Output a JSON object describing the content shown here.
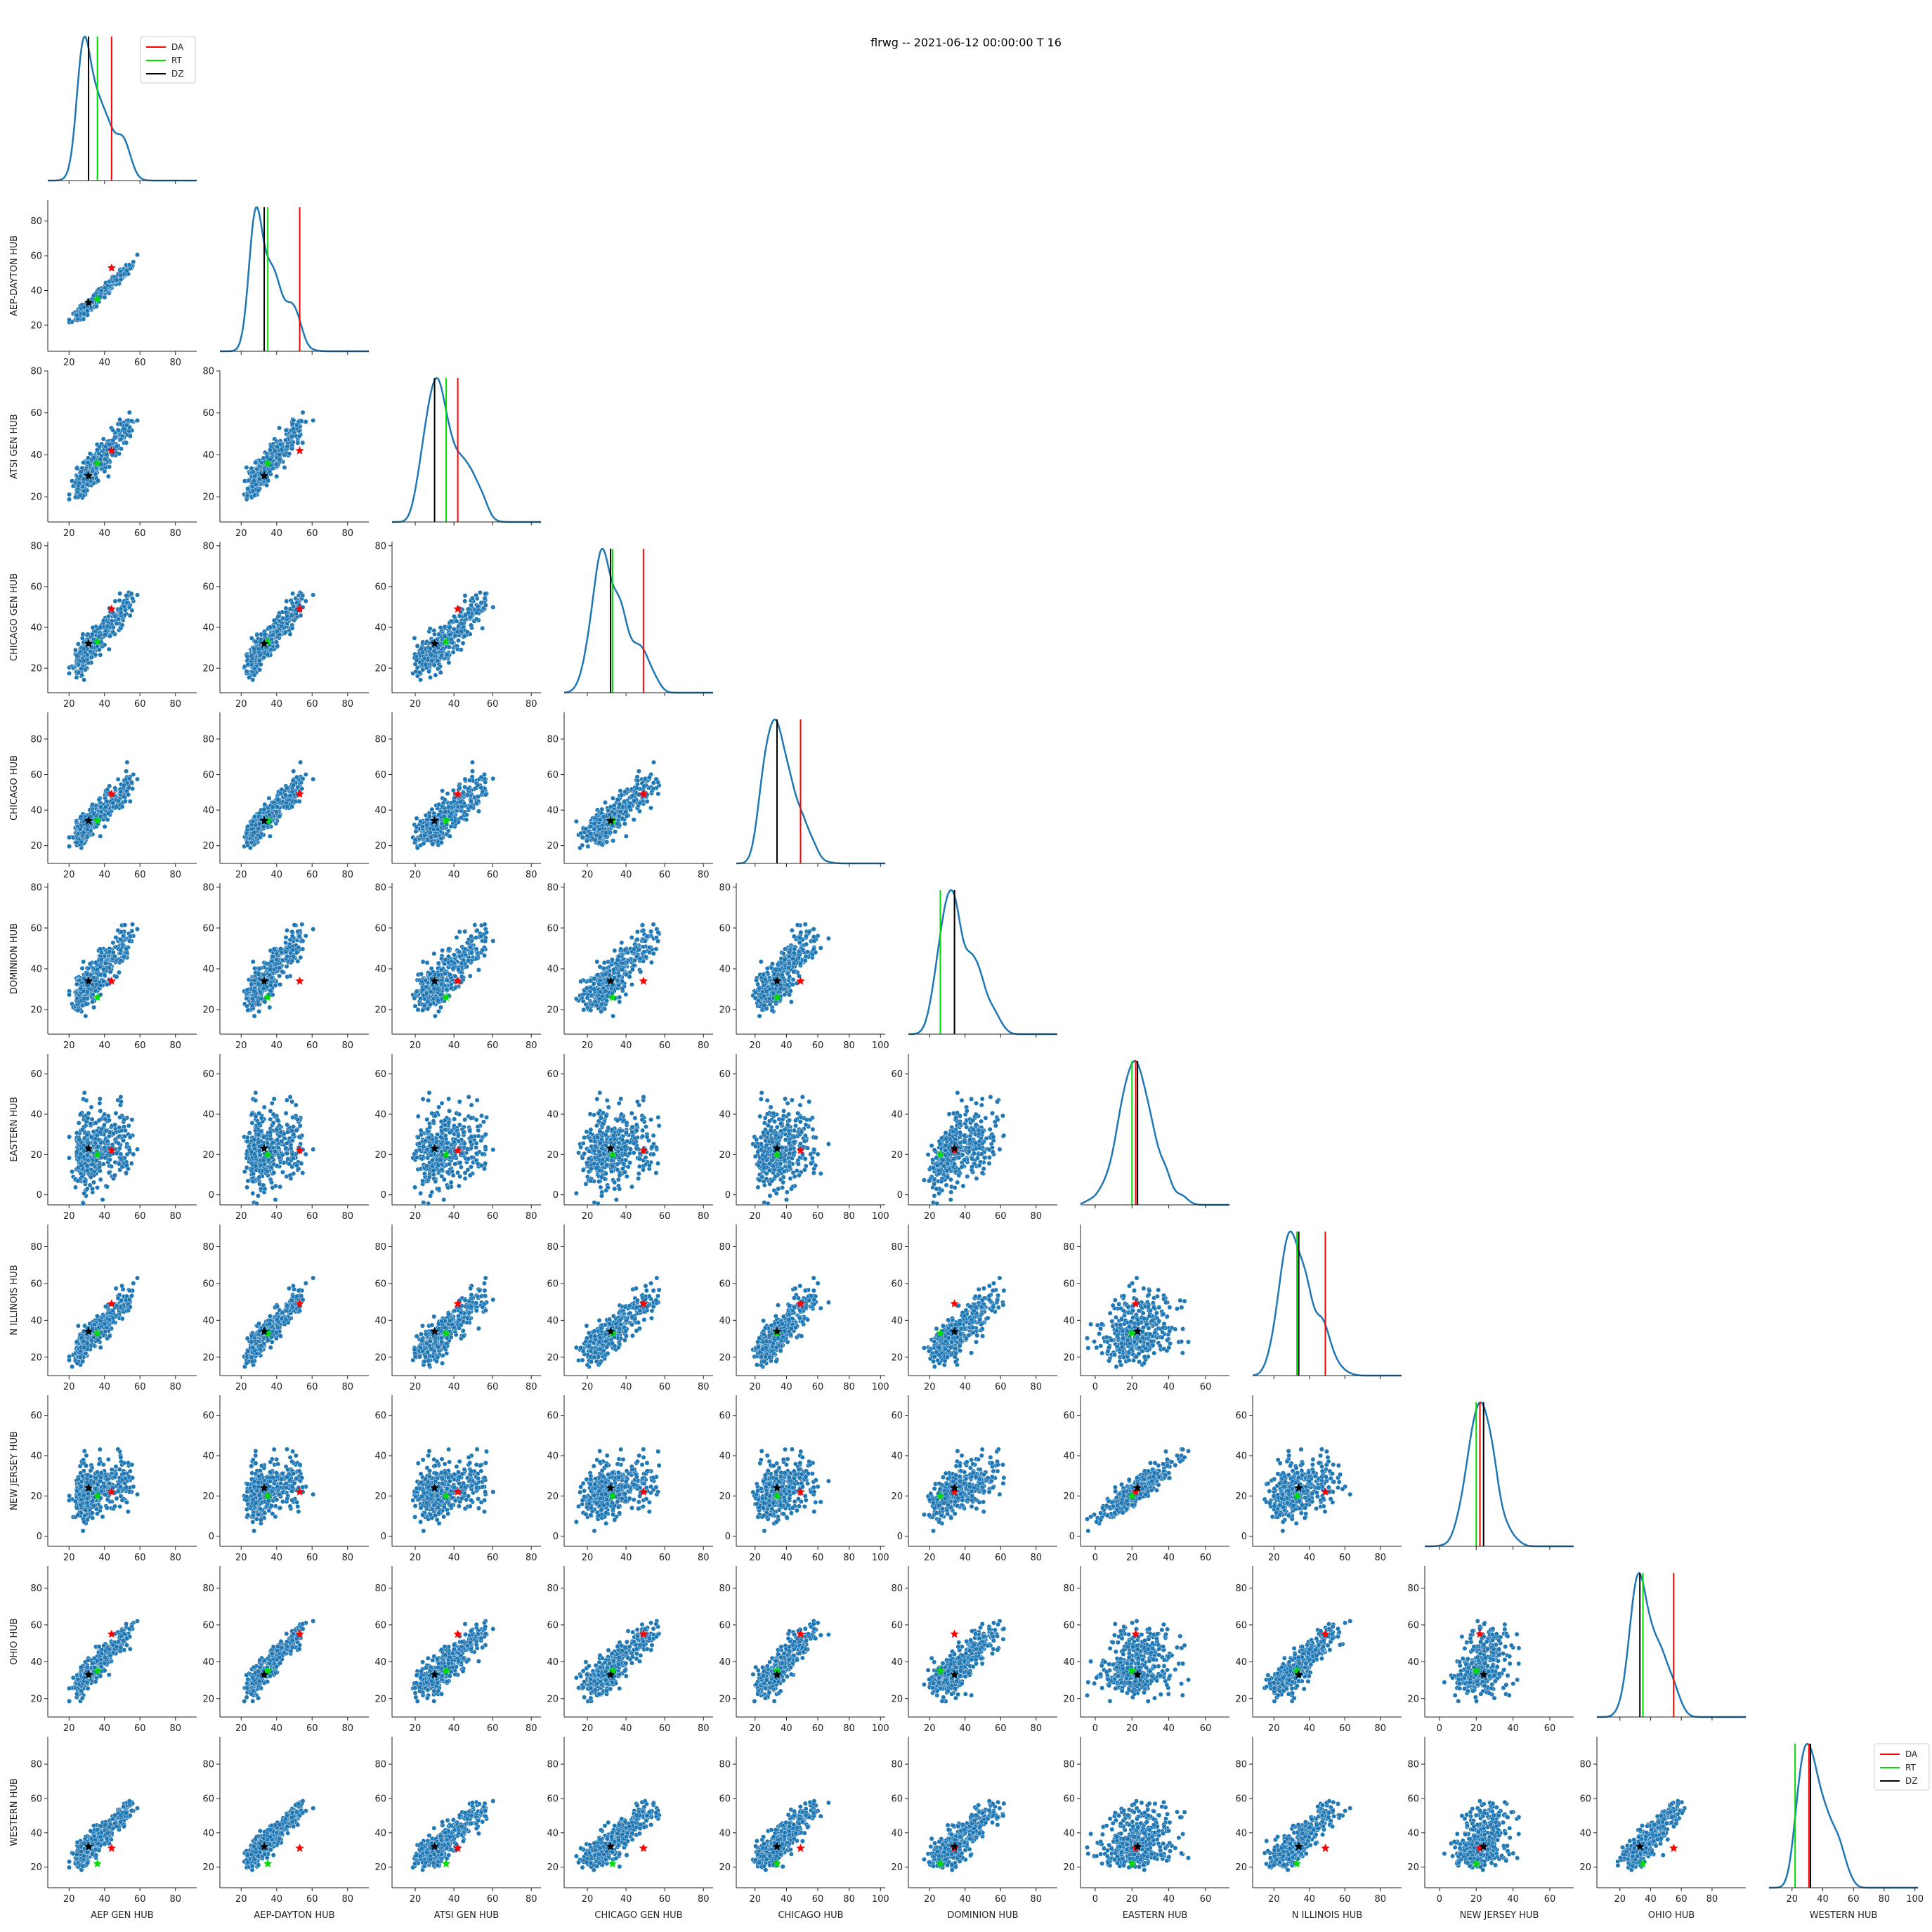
{
  "chart_data": {
    "type": "scatter",
    "kind": "pairplot-corner",
    "title": "flrwg -- 2021-06-12 00:00:00 T 16",
    "variables": [
      "AEP GEN HUB",
      "AEP-DAYTON HUB",
      "ATSI GEN HUB",
      "CHICAGO GEN HUB",
      "CHICAGO HUB",
      "DOMINION HUB",
      "EASTERN HUB",
      "N ILLINOIS HUB",
      "NEW JERSEY HUB",
      "OHIO HUB",
      "WESTERN HUB"
    ],
    "x_ranges": [
      [
        8,
        92
      ],
      [
        8,
        92
      ],
      [
        8,
        85
      ],
      [
        8,
        85
      ],
      [
        8,
        103
      ],
      [
        8,
        92
      ],
      [
        -8,
        73
      ],
      [
        8,
        92
      ],
      [
        -8,
        73
      ],
      [
        5,
        102
      ],
      [
        5,
        102
      ]
    ],
    "y_ranges": [
      null,
      [
        5,
        92
      ],
      [
        8,
        80
      ],
      [
        8,
        82
      ],
      [
        10,
        95
      ],
      [
        8,
        82
      ],
      [
        -5,
        70
      ],
      [
        10,
        92
      ],
      [
        -5,
        70
      ],
      [
        10,
        92
      ],
      [
        8,
        96
      ]
    ],
    "x_ticks": [
      [
        20,
        40,
        60,
        80
      ],
      [
        20,
        40,
        60,
        80
      ],
      [
        20,
        40,
        60,
        80
      ],
      [
        20,
        40,
        60,
        80
      ],
      [
        20,
        40,
        60,
        80,
        100
      ],
      [
        20,
        40,
        60,
        80
      ],
      [
        0,
        20,
        40,
        60
      ],
      [
        20,
        40,
        60,
        80
      ],
      [
        0,
        20,
        40,
        60
      ],
      [
        20,
        40,
        60,
        80
      ],
      [
        20,
        40,
        60,
        80,
        100
      ]
    ],
    "y_ticks": [
      null,
      [
        20,
        40,
        60,
        80
      ],
      [
        20,
        40,
        60,
        80
      ],
      [
        20,
        40,
        60,
        80
      ],
      [
        20,
        40,
        60,
        80
      ],
      [
        20,
        40,
        60,
        80
      ],
      [
        0,
        20,
        40,
        60
      ],
      [
        20,
        40,
        60,
        80
      ],
      [
        0,
        20,
        40,
        60
      ],
      [
        20,
        40,
        60,
        80
      ],
      [
        20,
        40,
        60,
        80
      ]
    ],
    "markers": {
      "DA": [
        44,
        53,
        42,
        49,
        49,
        34,
        22,
        49,
        22,
        55,
        31
      ],
      "RT": [
        36,
        35,
        36,
        33,
        34,
        26,
        20,
        33,
        20,
        35,
        22
      ],
      "DZ": [
        31,
        33,
        30,
        32,
        34,
        34,
        23,
        34,
        24,
        33,
        32
      ]
    },
    "legend": [
      {
        "label": "DA",
        "color": "#ff0000"
      },
      {
        "label": "RT",
        "color": "#00dd00"
      },
      {
        "label": "DZ",
        "color": "#000000"
      }
    ],
    "legend_placement": [
      "upper-right of first diagonal panel",
      "upper-right of last diagonal panel"
    ],
    "colors": {
      "points": "#1f77b4",
      "kde": "#1f77b4",
      "DA": "#ff0000",
      "RT": "#00dd00",
      "DZ": "#000000"
    },
    "distribution": {
      "n_points": 420,
      "mode": 27,
      "description": "right-skewed hub prices, strongly correlated except Eastern and New Jersey"
    }
  }
}
